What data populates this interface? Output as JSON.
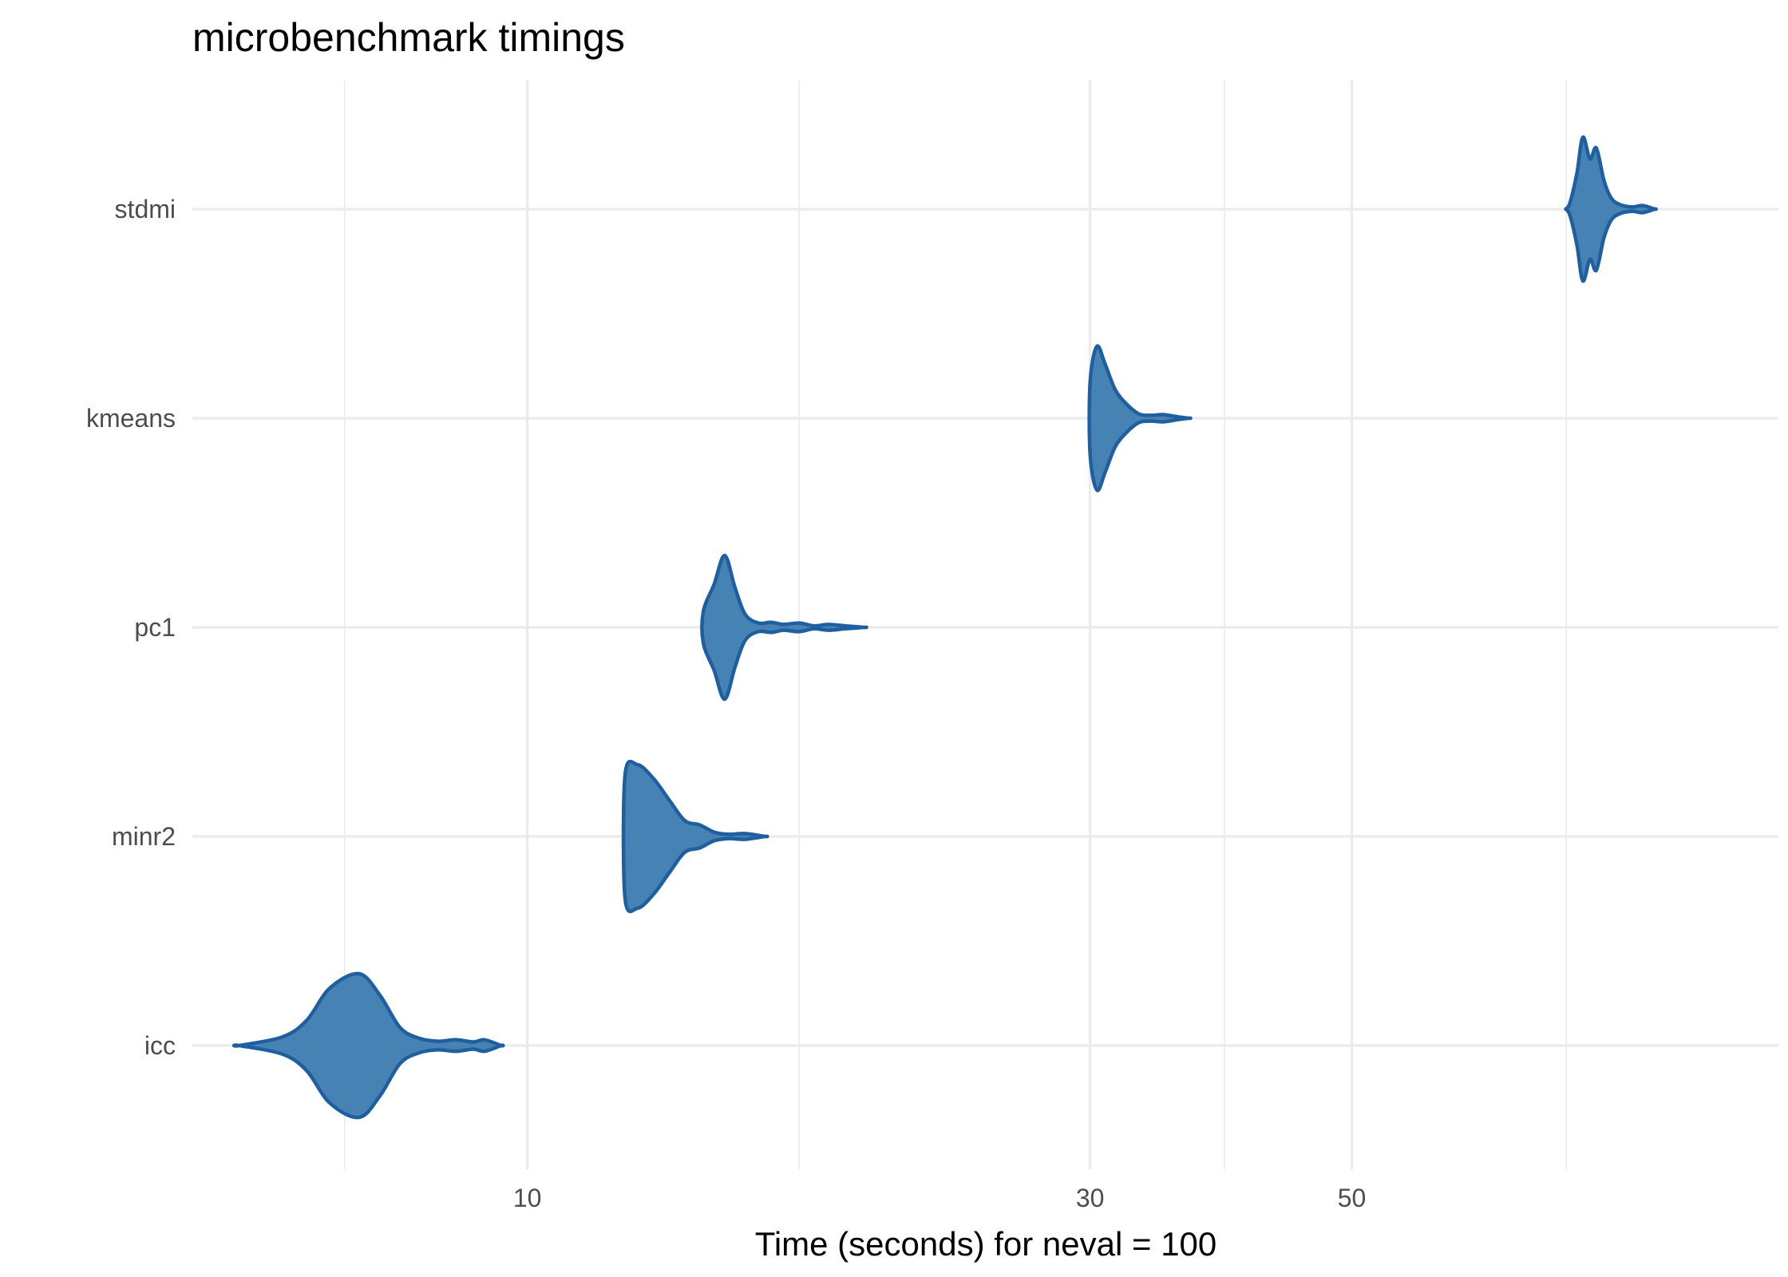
{
  "chart_data": {
    "type": "violin",
    "title": "microbenchmark timings",
    "xlabel": "Time (seconds) for neval = 100",
    "ylabel": "",
    "x_scale": "log",
    "xlim": [
      5.2,
      115
    ],
    "x_ticks": [
      10,
      30,
      50
    ],
    "x_minor_ticks": [
      7,
      17,
      39,
      76
    ],
    "categories": [
      "icc",
      "minr2",
      "pc1",
      "kmeans",
      "stdmi"
    ],
    "colors": {
      "fill": "#4682b4",
      "outline": "#1f5fa0",
      "grid": "#ebebeb"
    },
    "series": [
      {
        "name": "icc",
        "profile": [
          [
            5.7,
            0.0
          ],
          [
            6.2,
            0.12
          ],
          [
            6.5,
            0.35
          ],
          [
            6.8,
            0.8
          ],
          [
            7.2,
            1.0
          ],
          [
            7.5,
            0.7
          ],
          [
            7.8,
            0.25
          ],
          [
            8.1,
            0.1
          ],
          [
            8.4,
            0.06
          ],
          [
            8.7,
            0.08
          ],
          [
            9.0,
            0.05
          ],
          [
            9.2,
            0.08
          ],
          [
            9.5,
            0.0
          ]
        ]
      },
      {
        "name": "minr2",
        "profile": [
          [
            12.1,
            0.85
          ],
          [
            12.4,
            1.0
          ],
          [
            12.8,
            0.8
          ],
          [
            13.2,
            0.5
          ],
          [
            13.6,
            0.22
          ],
          [
            14.0,
            0.16
          ],
          [
            14.4,
            0.06
          ],
          [
            14.8,
            0.03
          ],
          [
            15.3,
            0.04
          ],
          [
            15.9,
            0.0
          ]
        ]
      },
      {
        "name": "pc1",
        "profile": [
          [
            14.1,
            0.22
          ],
          [
            14.4,
            0.6
          ],
          [
            14.7,
            1.0
          ],
          [
            15.0,
            0.55
          ],
          [
            15.3,
            0.18
          ],
          [
            15.7,
            0.06
          ],
          [
            16.1,
            0.07
          ],
          [
            16.5,
            0.04
          ],
          [
            17.0,
            0.06
          ],
          [
            17.5,
            0.02
          ],
          [
            18.0,
            0.04
          ],
          [
            18.6,
            0.02
          ],
          [
            19.3,
            0.0
          ]
        ]
      },
      {
        "name": "kmeans",
        "profile": [
          [
            30.0,
            0.5
          ],
          [
            30.4,
            1.0
          ],
          [
            30.9,
            0.75
          ],
          [
            31.5,
            0.4
          ],
          [
            32.2,
            0.2
          ],
          [
            33.0,
            0.06
          ],
          [
            33.8,
            0.04
          ],
          [
            34.6,
            0.05
          ],
          [
            35.6,
            0.02
          ],
          [
            36.4,
            0.0
          ]
        ]
      },
      {
        "name": "stdmi",
        "profile": [
          [
            76.0,
            0.0
          ],
          [
            76.6,
            0.1
          ],
          [
            77.6,
            0.5
          ],
          [
            78.5,
            1.0
          ],
          [
            79.6,
            0.7
          ],
          [
            80.6,
            0.85
          ],
          [
            81.8,
            0.4
          ],
          [
            83.0,
            0.15
          ],
          [
            84.5,
            0.06
          ],
          [
            86.5,
            0.03
          ],
          [
            88.2,
            0.05
          ],
          [
            90.3,
            0.0
          ]
        ]
      }
    ]
  }
}
